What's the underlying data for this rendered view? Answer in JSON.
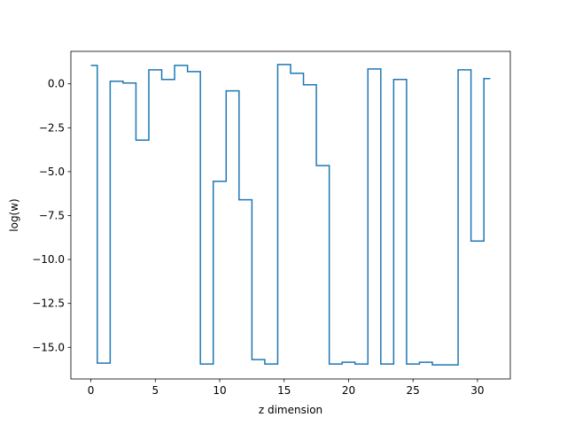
{
  "chart_data": {
    "type": "line",
    "drawstyle": "steps-mid",
    "title": "",
    "xlabel": "z dimension",
    "ylabel": "log(w)",
    "xlim": [
      -1.55,
      32.55
    ],
    "ylim": [
      -16.8,
      1.85
    ],
    "x_ticks": [
      0,
      5,
      10,
      15,
      20,
      25,
      30
    ],
    "y_ticks": [
      0.0,
      -2.5,
      -5.0,
      -7.5,
      -10.0,
      -12.5,
      -15.0
    ],
    "x_tick_labels": [
      "0",
      "5",
      "10",
      "15",
      "20",
      "25",
      "30"
    ],
    "y_tick_labels": [
      "0.0",
      "−2.5",
      "−5.0",
      "−7.5",
      "−10.0",
      "−12.5",
      "−15.0"
    ],
    "grid": false,
    "legend": "none",
    "line_color": "#1f77b4",
    "series": [
      {
        "x": [
          0,
          1,
          2,
          3,
          4,
          5,
          6,
          7,
          8,
          9,
          10,
          11,
          12,
          13,
          14,
          15,
          16,
          17,
          18,
          19,
          20,
          21,
          22,
          23,
          24,
          25,
          26,
          27,
          28,
          29,
          30,
          31
        ],
        "values": [
          1.05,
          -15.9,
          0.15,
          0.05,
          -3.2,
          0.8,
          0.25,
          1.05,
          0.7,
          -15.95,
          -5.55,
          -0.4,
          -6.6,
          -15.7,
          -15.95,
          1.1,
          0.6,
          -0.05,
          -4.65,
          -15.95,
          -15.85,
          -15.95,
          0.85,
          -15.95,
          0.25,
          -15.95,
          -15.85,
          -16.0,
          -16.0,
          0.8,
          -8.95,
          0.3
        ]
      }
    ]
  }
}
